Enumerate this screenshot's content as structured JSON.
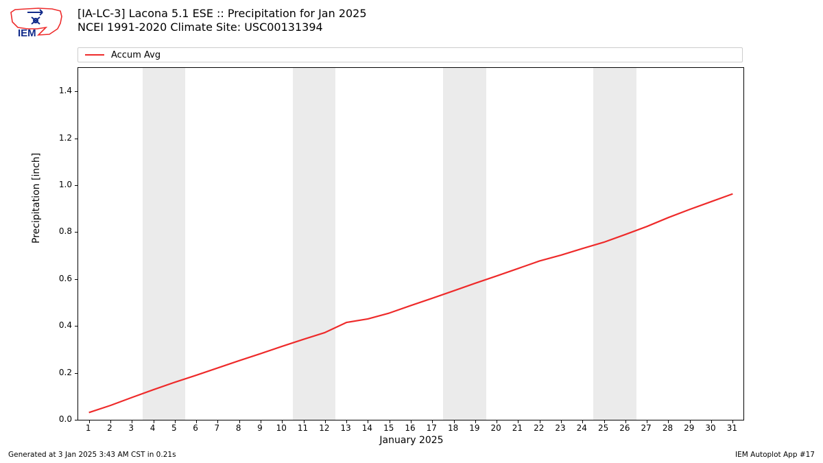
{
  "logo": {
    "text": "IEM",
    "outline_color": "#ee2a2a",
    "accent_color": "#102a8a"
  },
  "title": {
    "line1": "[IA-LC-3] Lacona 5.1 ESE :: Precipitation for Jan 2025",
    "line2": "NCEI 1991-2020 Climate Site: USC00131394"
  },
  "legend": {
    "items": [
      {
        "label": "Accum Avg",
        "color": "#ee2a2a"
      }
    ]
  },
  "chart": {
    "type": "line",
    "background_color": "#ffffff",
    "shade_color": "#ebebeb",
    "weekend_bands_x": [
      [
        3.5,
        5.5
      ],
      [
        10.5,
        12.5
      ],
      [
        17.5,
        19.5
      ],
      [
        24.5,
        26.5
      ]
    ],
    "xlim": [
      0.5,
      31.5
    ],
    "ylim": [
      0.0,
      1.5
    ],
    "xticks": [
      1,
      2,
      3,
      4,
      5,
      6,
      7,
      8,
      9,
      10,
      11,
      12,
      13,
      14,
      15,
      16,
      17,
      18,
      19,
      20,
      21,
      22,
      23,
      24,
      25,
      26,
      27,
      28,
      29,
      30,
      31
    ],
    "yticks": [
      0.0,
      0.2,
      0.4,
      0.6,
      0.8,
      1.0,
      1.2,
      1.4
    ],
    "ytick_labels": [
      "0.0",
      "0.2",
      "0.4",
      "0.6",
      "0.8",
      "1.0",
      "1.2",
      "1.4"
    ],
    "xlabel": "January 2025",
    "ylabel": "Precipitation [inch]",
    "series": [
      {
        "name": "Accum Avg",
        "color": "#ee2a2a",
        "line_width": 2.2,
        "x": [
          1,
          2,
          3,
          4,
          5,
          6,
          7,
          8,
          9,
          10,
          11,
          12,
          13,
          14,
          15,
          16,
          17,
          18,
          19,
          20,
          21,
          22,
          23,
          24,
          25,
          26,
          27,
          28,
          29,
          30,
          31
        ],
        "y": [
          0.031,
          0.061,
          0.095,
          0.128,
          0.16,
          0.19,
          0.221,
          0.252,
          0.282,
          0.313,
          0.343,
          0.372,
          0.415,
          0.43,
          0.455,
          0.487,
          0.518,
          0.55,
          0.582,
          0.613,
          0.645,
          0.677,
          0.702,
          0.73,
          0.757,
          0.79,
          0.824,
          0.862,
          0.897,
          0.93,
          0.963
        ]
      }
    ]
  },
  "footer": {
    "left": "Generated at 3 Jan 2025 3:43 AM CST in 0.21s",
    "right": "IEM Autoplot App #17"
  }
}
